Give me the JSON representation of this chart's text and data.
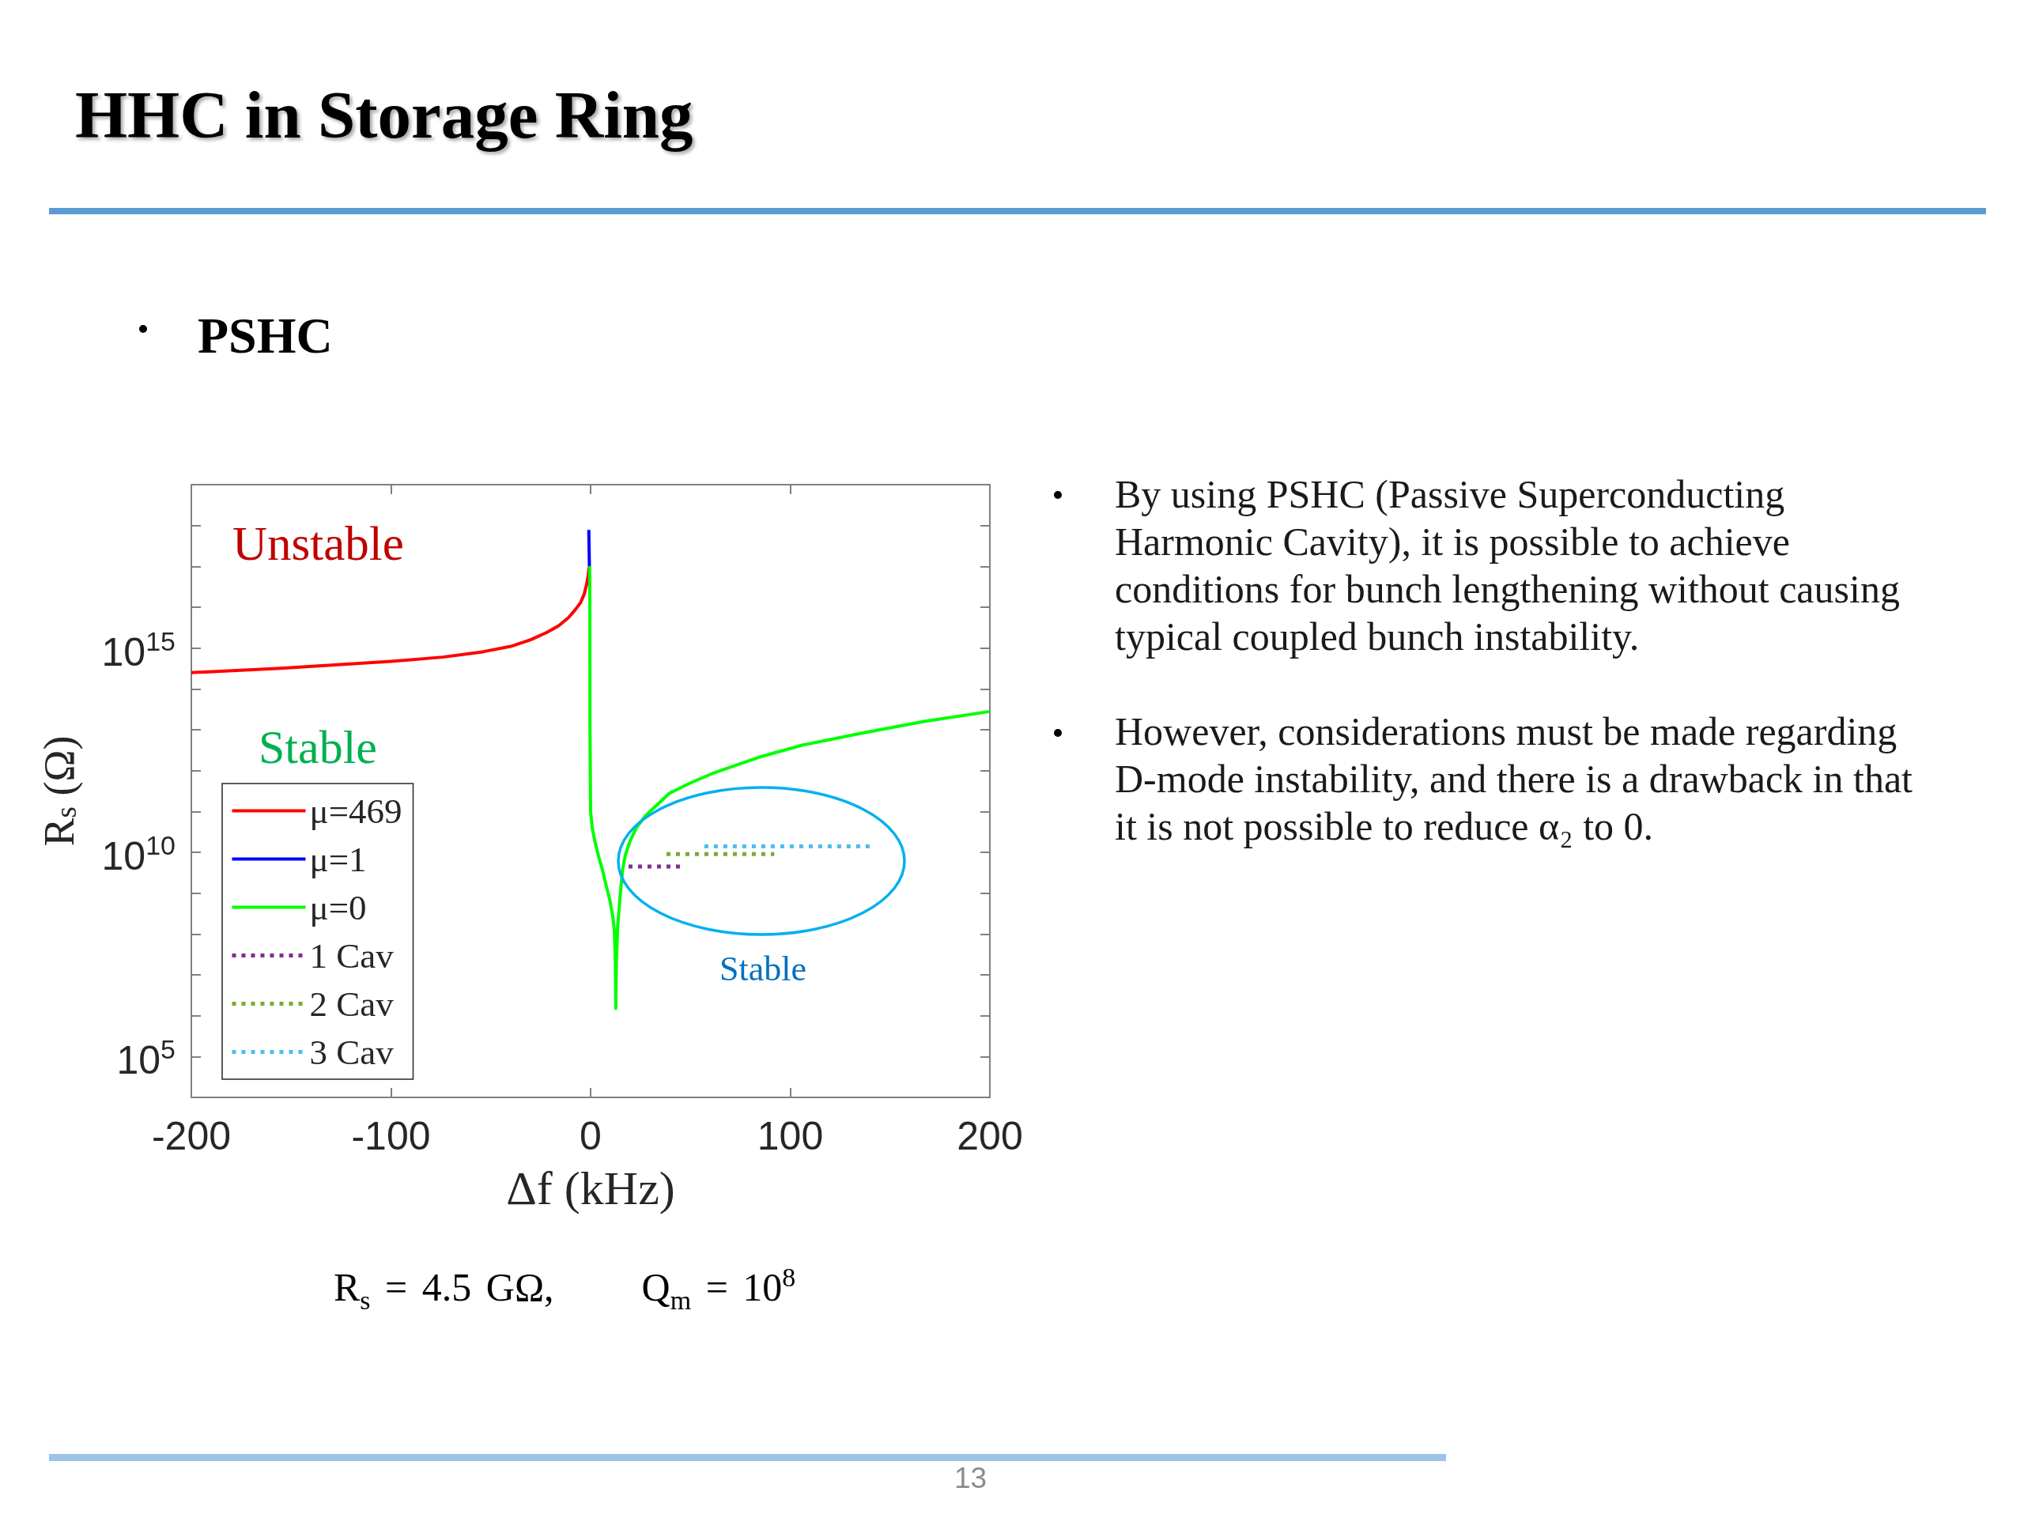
{
  "chart_data": {
    "type": "line",
    "title": "HHC in Storage Ring",
    "subtitle": "PSHC",
    "xlabel": "Δf (kHz)",
    "ylabel": "R$_{s}$ (Ω)",
    "annotations": [
      "Unstable",
      "Stable",
      "Stable",
      "By using PSHC (Passive Superconducting Harmonic Cavity), it is possible to achieve conditions for bunch lengthening without causing typical coupled bunch instability.",
      "However, considerations must be made regarding D-mode instability, and there is a drawback in that it is not possible to reduce α₂ to 0.",
      "R$_{s}$ = 4.5 GΩ,      Q$_{m}$ = 10$^{8}$",
      "13"
    ],
    "series": [
      {
        "name": "μ=469",
        "color": "#ff0000",
        "x": [
          -200,
          -155,
          -100,
          -74,
          -54,
          -40,
          -30,
          -22,
          -16,
          -11,
          -7.5,
          -5,
          -3.2,
          -2,
          -1.2,
          -0.6
        ],
        "values": [
          250000000000000.0,
          320000000000000.0,
          470000000000000.0,
          600000000000000.0,
          810000000000000.0,
          1100000000000000.0,
          1600000000000000.0,
          2400000000000000.0,
          3500000000000000.0,
          5600000000000000.0,
          8900000000000000.0,
          1.3e+16,
          2.1e+16,
          3.6e+16,
          6e+16,
          1e+17
        ]
      },
      {
        "name": "μ=1",
        "color": "#0000ff",
        "x": [
          -0.9,
          -0.6
        ],
        "values": [
          7.8e+17,
          1e+17
        ]
      },
      {
        "name": "μ=0",
        "color": "#00ff00",
        "x": [
          -0.4,
          -0.3,
          0,
          0.8,
          2.1,
          4,
          6,
          8,
          9.7,
          11.2,
          11.9,
          12.4,
          12.6,
          12.9,
          13.6,
          14.6,
          16,
          17.5,
          19.8,
          23,
          27.4,
          33,
          39.5,
          50,
          62,
          84,
          106,
          135,
          167,
          200
        ],
        "values": [
          1e+17,
          10000000000000.0,
          100000000000.0,
          40000000000.0,
          19000000000.0,
          7900000000.0,
          3600000000.0,
          1400000000.0,
          660000000.0,
          250000000.0,
          120000000.0,
          20000000.0,
          1500000.0,
          20000000.0,
          160000000.0,
          660000000.0,
          3600000000.0,
          8900000000.0,
          19000000000.0,
          40000000000.0,
          78000000000.0,
          140000000000.0,
          280000000000.0,
          500000000000.0,
          890000000000.0,
          2100000000000.0,
          4200000000000.0,
          8100000000000.0,
          16000000000000.0,
          28000000000000.0
        ]
      },
      {
        "name": "1 Cav",
        "color": "#7e2f8e",
        "line_style": "dotted",
        "x": [
          19,
          46
        ],
        "values": [
          4500000000.0,
          4500000000.0
        ]
      },
      {
        "name": "2 Cav",
        "color": "#77ac30",
        "line_style": "dotted",
        "x": [
          38,
          92
        ],
        "values": [
          9000000000.0,
          9000000000.0
        ]
      },
      {
        "name": "3 Cav",
        "color": "#4dbeee",
        "line_style": "dotted",
        "x": [
          57,
          140
        ],
        "values": [
          14000000000.0,
          14000000000.0
        ]
      }
    ],
    "xlim": [
      -200,
      200
    ],
    "xticks": [
      -200,
      -100,
      0,
      100,
      200
    ],
    "ylim": [
      10000.0,
      1e+19
    ],
    "yticks": [
      {
        "value": 100000.0,
        "label": "10$^{5}$"
      },
      {
        "value": 1000000.0,
        "label": null
      },
      {
        "value": 10000000.0,
        "label": null
      },
      {
        "value": 100000000.0,
        "label": null
      },
      {
        "value": 1000000000.0,
        "label": null
      },
      {
        "value": 10000000000.0,
        "label": "10$^{10}$"
      },
      {
        "value": 100000000000.0,
        "label": null
      },
      {
        "value": 1000000000000.0,
        "label": null
      },
      {
        "value": 10000000000000.0,
        "label": null
      },
      {
        "value": 100000000000000.0,
        "label": null
      },
      {
        "value": 1000000000000000.0,
        "label": "10$^{15}$"
      },
      {
        "value": 1e+16,
        "label": null
      },
      {
        "value": 1e+17,
        "label": null
      },
      {
        "value": 1e+18,
        "label": null
      }
    ],
    "log": true,
    "legend": "bottom left"
  }
}
